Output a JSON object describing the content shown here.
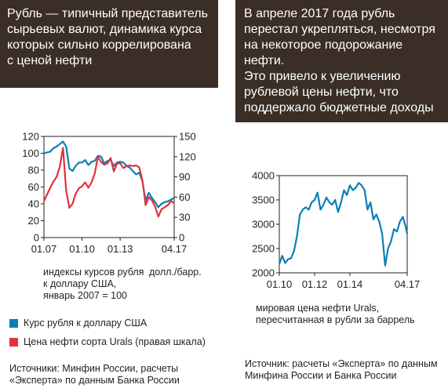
{
  "left_panel": {
    "title": "Рубль — типичный представитель\nсырьевых валют, динамика курса\nкоторых сильно коррелирована\nс ценой нефти",
    "caption_left": "индексы курсов рубля\nк доллару США,\nянварь 2007 = 100",
    "caption_right": "долл./барр.",
    "legend": [
      {
        "label": "Курс рубля к доллару США",
        "color": "#0b7fb5"
      },
      {
        "label": "Цена нефти сорта Urals (правая шкала)",
        "color": "#e2323e"
      }
    ],
    "source": "Источники: Минфин России, расчеты\n«Эксперта» по данным Банка России"
  },
  "right_panel": {
    "title": "В апреле 2017 года рубль\nперестал укрепляться, несмотря\nна некоторое подорожание нефти.\nЭто привело к увеличению\nрублевой цены нефти, что\nподдержало бюджетные доходы",
    "caption": "мировая цена нефти Urals,\nпересчитанная в рубли за баррель",
    "source": "Источник: расчеты «Эксперта» по данным\nМинфина России и Банка России"
  },
  "chart_data": [
    {
      "type": "line",
      "x_ticks": [
        "01.07",
        "01.10",
        "01.13",
        "04.17"
      ],
      "xlim": [
        "2007-01",
        "2017-04"
      ],
      "ylim": [
        0,
        120
      ],
      "yticks": [
        0,
        20,
        40,
        60,
        80,
        100,
        120
      ],
      "ylim_right": [
        0,
        150
      ],
      "yticks_right": [
        0,
        30,
        60,
        90,
        120,
        150
      ],
      "grid": false,
      "series": [
        {
          "name": "Курс рубля к доллару США",
          "axis": "left",
          "color": "#0b7fb5",
          "x": [
            "2007-01",
            "2007-04",
            "2007-07",
            "2007-10",
            "2008-01",
            "2008-04",
            "2008-07",
            "2008-10",
            "2009-01",
            "2009-04",
            "2009-07",
            "2009-10",
            "2010-01",
            "2010-04",
            "2010-07",
            "2010-10",
            "2011-01",
            "2011-04",
            "2011-07",
            "2011-10",
            "2012-01",
            "2012-04",
            "2012-07",
            "2012-10",
            "2013-01",
            "2013-04",
            "2013-07",
            "2013-10",
            "2014-01",
            "2014-04",
            "2014-07",
            "2014-10",
            "2015-01",
            "2015-04",
            "2015-07",
            "2015-10",
            "2016-01",
            "2016-04",
            "2016-07",
            "2016-10",
            "2017-01",
            "2017-04"
          ],
          "values": [
            100,
            101,
            102,
            106,
            108,
            111,
            114,
            108,
            82,
            79,
            85,
            89,
            89,
            92,
            86,
            90,
            91,
            97,
            96,
            88,
            91,
            92,
            85,
            89,
            90,
            89,
            85,
            83,
            79,
            75,
            77,
            67,
            44,
            53,
            47,
            42,
            36,
            40,
            42,
            43,
            45,
            47
          ]
        },
        {
          "name": "Цена нефти сорта Urals (правая шкала)",
          "axis": "right",
          "color": "#e2323e",
          "x": [
            "2007-01",
            "2007-04",
            "2007-07",
            "2007-10",
            "2008-01",
            "2008-04",
            "2008-07",
            "2008-10",
            "2009-01",
            "2009-04",
            "2009-07",
            "2009-10",
            "2010-01",
            "2010-04",
            "2010-07",
            "2010-10",
            "2011-01",
            "2011-04",
            "2011-07",
            "2011-10",
            "2012-01",
            "2012-04",
            "2012-07",
            "2012-10",
            "2013-01",
            "2013-04",
            "2013-07",
            "2013-10",
            "2014-01",
            "2014-04",
            "2014-07",
            "2014-10",
            "2015-01",
            "2015-04",
            "2015-07",
            "2015-10",
            "2016-01",
            "2016-04",
            "2016-07",
            "2016-10",
            "2017-01",
            "2017-04"
          ],
          "values": [
            54,
            64,
            74,
            83,
            90,
            105,
            133,
            70,
            44,
            50,
            65,
            73,
            76,
            82,
            74,
            82,
            95,
            120,
            112,
            108,
            110,
            118,
            98,
            110,
            110,
            103,
            106,
            107,
            106,
            107,
            104,
            85,
            48,
            60,
            55,
            46,
            31,
            42,
            45,
            48,
            54,
            51
          ]
        }
      ]
    },
    {
      "type": "line",
      "x_ticks": [
        "01.10",
        "01.12",
        "01.14",
        "04.17"
      ],
      "xlim": [
        "2010-01",
        "2017-04"
      ],
      "ylim": [
        2000,
        4000
      ],
      "yticks": [
        2000,
        2500,
        3000,
        3500,
        4000
      ],
      "grid": false,
      "series": [
        {
          "color": "#0b7fb5",
          "x": [
            "2010-01",
            "2010-03",
            "2010-05",
            "2010-07",
            "2010-09",
            "2010-11",
            "2011-01",
            "2011-03",
            "2011-05",
            "2011-07",
            "2011-09",
            "2011-11",
            "2012-01",
            "2012-03",
            "2012-05",
            "2012-07",
            "2012-09",
            "2012-11",
            "2013-01",
            "2013-03",
            "2013-05",
            "2013-07",
            "2013-09",
            "2013-11",
            "2014-01",
            "2014-03",
            "2014-05",
            "2014-07",
            "2014-09",
            "2014-11",
            "2015-01",
            "2015-03",
            "2015-05",
            "2015-07",
            "2015-09",
            "2015-11",
            "2016-01",
            "2016-03",
            "2016-05",
            "2016-07",
            "2016-09",
            "2016-11",
            "2017-01",
            "2017-03",
            "2017-04"
          ],
          "values": [
            2180,
            2350,
            2200,
            2280,
            2300,
            2450,
            2750,
            3200,
            3300,
            3350,
            3300,
            3450,
            3500,
            3650,
            3300,
            3400,
            3550,
            3450,
            3400,
            3500,
            3250,
            3450,
            3700,
            3600,
            3800,
            3700,
            3750,
            3850,
            3800,
            3700,
            3300,
            3450,
            3100,
            3200,
            3050,
            2800,
            2150,
            2500,
            2650,
            2900,
            2850,
            3050,
            3150,
            2950,
            2800
          ]
        }
      ]
    }
  ]
}
